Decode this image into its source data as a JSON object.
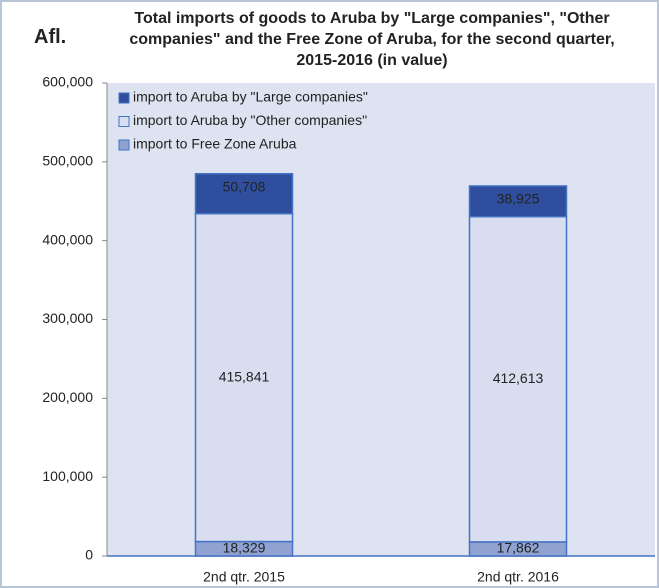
{
  "chart_data": {
    "type": "stacked_bar",
    "title": "Total imports of goods to Aruba by \"Large companies\", \"Other companies\" and the Free Zone of Aruba, for the second quarter, 2015-2016 (in value)",
    "y_label": "Afl.",
    "categories": [
      "2nd qtr. 2015",
      "2nd qtr. 2016"
    ],
    "series": [
      {
        "name": "import to Free Zone Aruba",
        "color": "#8fa2d2",
        "values": [
          18329,
          17862
        ],
        "value_labels": [
          "18,329",
          "17,862"
        ]
      },
      {
        "name": "import to Aruba by \"Other companies\"",
        "color": "#d9ddf0",
        "values": [
          415841,
          412613
        ],
        "value_labels": [
          "415,841",
          "412,613"
        ]
      },
      {
        "name": "import to Aruba by \"Large companies\"",
        "color": "#2f4f9e",
        "values": [
          50708,
          38925
        ],
        "value_labels": [
          "50,708",
          "38,925"
        ]
      }
    ],
    "ylim": [
      0,
      600000
    ],
    "yticks": [
      0,
      {
        "value": 100000,
        "label": "100,000"
      },
      {
        "value": 200000,
        "label": "200,000"
      },
      {
        "value": 300000,
        "label": "300,000"
      },
      {
        "value": 400000,
        "label": "400,000"
      },
      {
        "value": 500000,
        "label": "500,000"
      },
      {
        "value": 600000,
        "label": "600,000"
      }
    ],
    "legend": "top-left"
  }
}
